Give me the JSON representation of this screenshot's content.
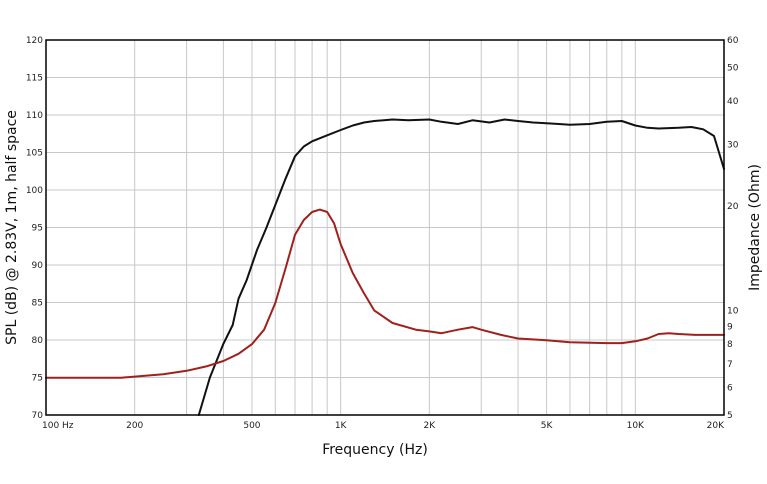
{
  "chart_data": {
    "type": "line",
    "xlabel": "Frequency (Hz)",
    "ylabel_left": "SPL (dB) @ 2.83V, 1m, half space",
    "ylabel_right": "Impedance (Ohm)",
    "x_scale": "log",
    "xlim": [
      100,
      20000
    ],
    "ylim_left": [
      70,
      120
    ],
    "ylim_right": [
      5,
      60
    ],
    "y_right_scale": "log",
    "grid": true,
    "x_tick_labels": [
      {
        "value": 100,
        "label": "100  Hz"
      },
      {
        "value": 200,
        "label": "200"
      },
      {
        "value": 500,
        "label": "500"
      },
      {
        "value": 1000,
        "label": "1K"
      },
      {
        "value": 2000,
        "label": "2K"
      },
      {
        "value": 5000,
        "label": "5K"
      },
      {
        "value": 10000,
        "label": "10K"
      },
      {
        "value": 20000,
        "label": "20K"
      }
    ],
    "x_grid": [
      100,
      200,
      300,
      400,
      500,
      600,
      700,
      800,
      900,
      1000,
      2000,
      3000,
      4000,
      5000,
      6000,
      7000,
      8000,
      9000,
      10000,
      20000
    ],
    "y_left_ticks": [
      70,
      75,
      80,
      85,
      90,
      95,
      100,
      105,
      110,
      115,
      120
    ],
    "y_right_ticks": [
      5,
      6,
      7,
      8,
      9,
      10,
      20,
      30,
      40,
      50,
      60
    ],
    "series": [
      {
        "axis": "left",
        "color": "#111111",
        "x": [
          330,
          360,
          400,
          430,
          450,
          480,
          520,
          560,
          600,
          650,
          700,
          750,
          800,
          900,
          1000,
          1100,
          1200,
          1300,
          1500,
          1700,
          2000,
          2200,
          2500,
          2800,
          3200,
          3600,
          4000,
          4500,
          5000,
          5500,
          6000,
          7000,
          8000,
          9000,
          10000,
          11000,
          12000,
          14000,
          15500,
          17000,
          18500,
          20000
        ],
        "values": [
          70,
          75,
          79.5,
          82,
          85.5,
          88,
          92,
          95,
          98,
          101.5,
          104.5,
          105.8,
          106.5,
          107.3,
          108,
          108.6,
          109,
          109.2,
          109.4,
          109.3,
          109.4,
          109.1,
          108.8,
          109.3,
          109.0,
          109.4,
          109.2,
          109.0,
          108.9,
          108.8,
          108.7,
          108.8,
          109.1,
          109.2,
          108.6,
          108.3,
          108.2,
          108.3,
          108.4,
          108.1,
          107.2,
          102.8
        ]
      },
      {
        "axis": "right",
        "color": "#a0201c",
        "x": [
          100,
          150,
          180,
          200,
          250,
          300,
          350,
          400,
          450,
          500,
          550,
          600,
          650,
          700,
          750,
          800,
          850,
          900,
          950,
          1000,
          1100,
          1200,
          1300,
          1500,
          1800,
          2000,
          2200,
          2500,
          2800,
          3000,
          3500,
          4000,
          5000,
          6000,
          8000,
          9000,
          10000,
          11000,
          12000,
          13000,
          14000,
          16000,
          20000
        ],
        "values": [
          6.4,
          6.4,
          6.4,
          6.45,
          6.55,
          6.7,
          6.9,
          7.15,
          7.5,
          8.0,
          8.8,
          10.5,
          13.2,
          16.5,
          18.2,
          19.2,
          19.5,
          19.2,
          17.8,
          15.5,
          12.8,
          11.2,
          10.0,
          9.2,
          8.8,
          8.7,
          8.6,
          8.8,
          8.95,
          8.8,
          8.5,
          8.3,
          8.2,
          8.1,
          8.05,
          8.05,
          8.15,
          8.3,
          8.55,
          8.6,
          8.55,
          8.5,
          8.5
        ]
      }
    ]
  }
}
